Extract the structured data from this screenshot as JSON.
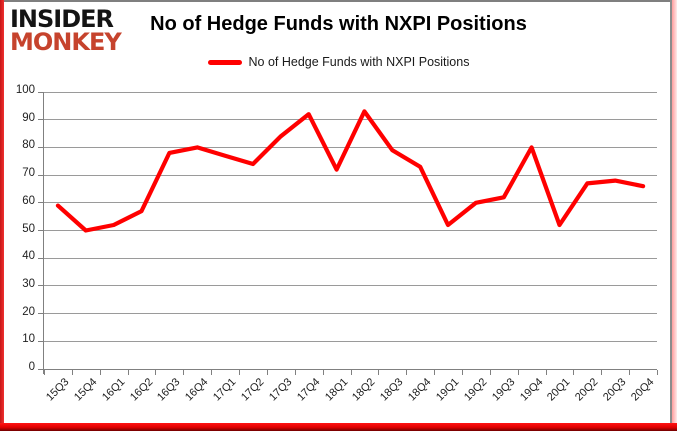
{
  "logo": {
    "line1": "INSIDER",
    "line2": "MONKEY"
  },
  "title": "No of Hedge Funds with NXPI Positions",
  "legend": {
    "label": "No of Hedge Funds with NXPI Positions"
  },
  "colors": {
    "series": "#ff0000",
    "grid": "#9a9a9a",
    "axis": "#808080",
    "title_text": "#000000",
    "tick_text": "#1f1f1f",
    "logo_top": "#141414",
    "logo_bottom": "#c6432d",
    "frame_red": "#e01414",
    "frame_gray": "#7f7f7f",
    "glow_pink": "#ff9d9d"
  },
  "chart_data": {
    "type": "line",
    "title": "No of Hedge Funds with NXPI Positions",
    "xlabel": "",
    "ylabel": "",
    "categories": [
      "15Q3",
      "15Q4",
      "16Q1",
      "16Q2",
      "16Q3",
      "16Q4",
      "17Q1",
      "17Q2",
      "17Q3",
      "17Q4",
      "18Q1",
      "18Q2",
      "18Q3",
      "18Q4",
      "19Q1",
      "19Q2",
      "19Q3",
      "19Q4",
      "20Q1",
      "20Q2",
      "20Q3",
      "20Q4"
    ],
    "series": [
      {
        "name": "No of Hedge Funds with NXPI Positions",
        "color": "#ff0000",
        "values": [
          59,
          50,
          52,
          57,
          78,
          80,
          77,
          74,
          84,
          92,
          72,
          93,
          79,
          73,
          52,
          60,
          62,
          80,
          52,
          67,
          68,
          66
        ]
      }
    ],
    "ylim": [
      0,
      100
    ],
    "yticks": [
      0,
      10,
      20,
      30,
      40,
      50,
      60,
      70,
      80,
      90,
      100
    ],
    "grid": true,
    "legend_position": "top-center"
  }
}
